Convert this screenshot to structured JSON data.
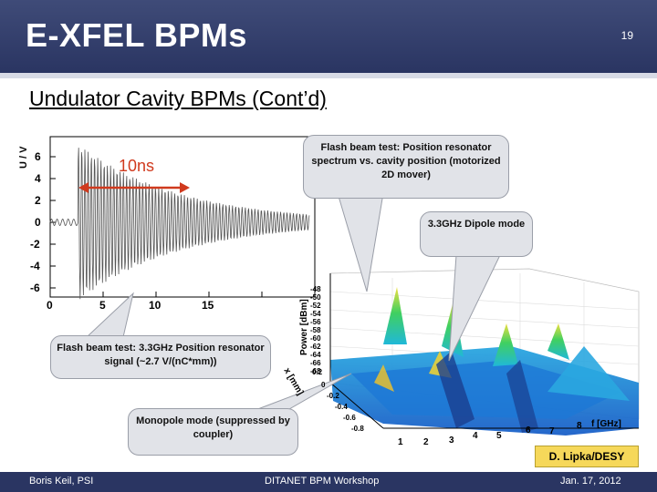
{
  "header": {
    "title": "E-XFEL BPMs",
    "slide_number": "19"
  },
  "subtitle": "Undulator Cavity BPMs (Cont’d)",
  "left_plot": {
    "y_axis_label": "U / V",
    "y_ticks": [
      "6",
      "4",
      "2",
      "0",
      "-2",
      "-4",
      "-6"
    ],
    "x_ticks": [
      "0",
      "5",
      "10",
      "15"
    ],
    "span_label": "10ns",
    "accent_color": "#d03a1e"
  },
  "callouts": {
    "flash_spectrum": "Flash beam test: Position resonator spectrum vs. cavity position (motorized 2D mover)",
    "dipole": "3.3GHz Dipole mode",
    "flash_signal": "Flash beam test: 3.3GHz Position resonator signal (~2.7 V/(nC*mm))",
    "monopole": "Monopole mode (suppressed by coupler)"
  },
  "right_plot": {
    "z_axis_label": "Power [dBm]",
    "z_ticks": [
      "-48",
      "-50",
      "-52",
      "-54",
      "-56",
      "-58",
      "-60",
      "-62",
      "-64",
      "-66",
      "-68"
    ],
    "y_axis_label": "x [mm]",
    "y_ticks": [
      "0.2",
      "0",
      "-0.2",
      "-0.4",
      "-0.6",
      "-0.8"
    ],
    "x_ticks": [
      "1",
      "2",
      "3",
      "4",
      "5",
      "6",
      "7",
      "8"
    ],
    "x_axis_label": "f [GHz]"
  },
  "credit": "D. Lipka/DESY",
  "footer": {
    "left": "Boris Keil, PSI",
    "center": "DITANET BPM Workshop",
    "right": "Jan. 17, 2012"
  }
}
